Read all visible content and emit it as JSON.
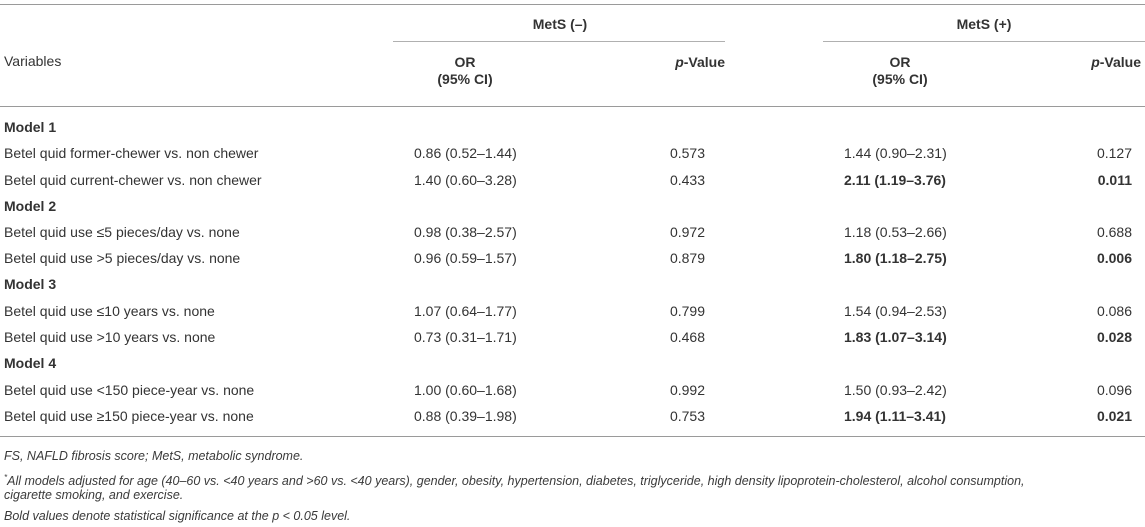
{
  "header": {
    "group1": "MetS (–)",
    "group2": "MetS (+)",
    "variables": "Variables",
    "or_line1": "OR",
    "or_line2": "(95% CI)",
    "p_italic": "p",
    "p_rest": "-Value"
  },
  "rows": [
    {
      "type": "model",
      "label": "Model 1"
    },
    {
      "type": "data",
      "label": "Betel quid former-chewer vs. non chewer",
      "or1": "0.86 (0.52–1.44)",
      "p1": "0.573",
      "or2": "1.44 (0.90–2.31)",
      "p2": "0.127",
      "bold2": false
    },
    {
      "type": "data",
      "label": "Betel quid current-chewer vs. non chewer",
      "or1": "1.40 (0.60–3.28)",
      "p1": "0.433",
      "or2": "2.11 (1.19–3.76)",
      "p2": "0.011",
      "bold2": true
    },
    {
      "type": "model",
      "label": "Model 2"
    },
    {
      "type": "data",
      "label": "Betel quid use ≤5 pieces/day vs. none",
      "or1": "0.98 (0.38–2.57)",
      "p1": "0.972",
      "or2": "1.18 (0.53–2.66)",
      "p2": "0.688",
      "bold2": false
    },
    {
      "type": "data",
      "label": "Betel quid use >5 pieces/day vs. none",
      "or1": "0.96 (0.59–1.57)",
      "p1": "0.879",
      "or2": "1.80 (1.18–2.75)",
      "p2": "0.006",
      "bold2": true
    },
    {
      "type": "model",
      "label": "Model 3"
    },
    {
      "type": "data",
      "label": "Betel quid use ≤10 years vs. none",
      "or1": "1.07 (0.64–1.77)",
      "p1": "0.799",
      "or2": "1.54 (0.94–2.53)",
      "p2": "0.086",
      "bold2": false
    },
    {
      "type": "data",
      "label": "Betel quid use >10 years vs. none",
      "or1": "0.73 (0.31–1.71)",
      "p1": "0.468",
      "or2": "1.83 (1.07–3.14)",
      "p2": "0.028",
      "bold2": true
    },
    {
      "type": "model",
      "label": "Model 4"
    },
    {
      "type": "data",
      "label": "Betel quid use <150 piece-year vs. none",
      "or1": "1.00 (0.60–1.68)",
      "p1": "0.992",
      "or2": "1.50 (0.93–2.42)",
      "p2": "0.096",
      "bold2": false
    },
    {
      "type": "data",
      "label": "Betel quid use ≥150 piece-year vs. none",
      "or1": "0.88 (0.39–1.98)",
      "p1": "0.753",
      "or2": "1.94 (1.11–3.41)",
      "p2": "0.021",
      "bold2": true
    }
  ],
  "footnotes": {
    "line1": "FS, NAFLD fibrosis score; MetS, metabolic syndrome.",
    "star": "*",
    "line2": "All models adjusted for age (40–60 vs. <40 years and >60 vs. <40 years), gender, obesity, hypertension, diabetes, triglyceride, high density lipoprotein-cholesterol, alcohol consumption,",
    "line3": "cigarette smoking, and exercise.",
    "line4": "Bold values denote statistical significance at the p < 0.05 level."
  }
}
